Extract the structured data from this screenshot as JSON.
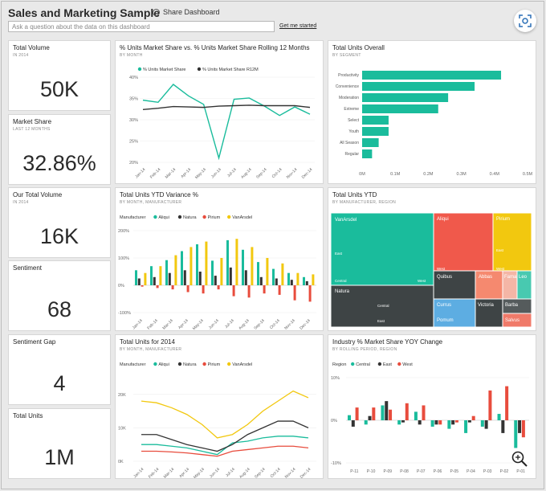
{
  "header": {
    "title": "Sales and Marketing Sample",
    "share_label": "Share Dashboard",
    "qna_placeholder": "Ask a question about the data on this dashboard",
    "get_started": "Get me started"
  },
  "kpis": [
    {
      "title": "Total Volume",
      "subtitle": "IN 2014",
      "value": "50K"
    },
    {
      "title": "Market Share",
      "subtitle": "LAST 12 MONTHS",
      "value": "32.86%"
    },
    {
      "title": "Our Total Volume",
      "subtitle": "IN 2014",
      "value": "16K"
    },
    {
      "title": "Sentiment",
      "subtitle": "",
      "value": "68"
    },
    {
      "title": "Sentiment Gap",
      "subtitle": "",
      "value": "4"
    },
    {
      "title": "Total Units",
      "subtitle": "",
      "value": "1M"
    }
  ],
  "colors": {
    "teal": "#1abc9c",
    "dark": "#333333",
    "red": "#e84c3d",
    "yellow": "#f2c80f"
  },
  "charts": {
    "share_line": {
      "title": "% Units Market Share vs. % Units Market Share Rolling 12 Months",
      "subtitle": "BY MONTH",
      "chart_data": {
        "type": "line",
        "title": "% Units Market Share vs. % Units Market Share Rolling 12 Months",
        "categories": [
          "Jan-14",
          "Feb-14",
          "Mar-14",
          "Apr-14",
          "May-14",
          "Jun-14",
          "Jul-14",
          "Aug-14",
          "Sep-14",
          "Oct-14",
          "Nov-14",
          "Dec-14"
        ],
        "series": [
          {
            "name": "% Units Market Share",
            "values": [
              34.6,
              34.1,
              38.3,
              35.6,
              33.6,
              21.0,
              34.8,
              35.1,
              33.2,
              31.0,
              33.0,
              31.3
            ]
          },
          {
            "name": "% Units Market Share R12M",
            "values": [
              32.4,
              32.7,
              33.1,
              33.0,
              32.9,
              33.2,
              33.3,
              33.4,
              33.3,
              33.3,
              33.3,
              32.9
            ]
          }
        ],
        "yticks": [
          "20%",
          "25%",
          "30%",
          "35%",
          "40%"
        ],
        "ylim": [
          20,
          40
        ]
      }
    },
    "units_overall": {
      "title": "Total Units Overall",
      "subtitle": "BY SEGMENT",
      "chart_data": {
        "type": "bar",
        "orientation": "horizontal",
        "categories": [
          "Productivity",
          "Convenience",
          "Moderation",
          "Extreme",
          "Select",
          "Youth",
          "All Season",
          "Regular"
        ],
        "values": [
          0.42,
          0.34,
          0.26,
          0.23,
          0.08,
          0.08,
          0.05,
          0.03
        ],
        "xticks": [
          "0M",
          "0.1M",
          "0.2M",
          "0.3M",
          "0.4M",
          "0.5M"
        ],
        "xlim": [
          0,
          0.5
        ]
      }
    },
    "ytd_variance": {
      "title": "Total Units YTD Variance %",
      "subtitle": "BY MONTH, MANUFACTURER",
      "legend_title": "Manufacturer",
      "chart_data": {
        "type": "bar",
        "categories": [
          "Jan-14",
          "Feb-14",
          "Mar-14",
          "Apr-14",
          "May-14",
          "Jun-14",
          "Jul-14",
          "Aug-14",
          "Sep-14",
          "Oct-14",
          "Nov-14",
          "Dec-14"
        ],
        "series": [
          {
            "name": "Aliqui",
            "values": [
              55,
              70,
              92,
              125,
              150,
              90,
              165,
              130,
              85,
              60,
              45,
              30
            ]
          },
          {
            "name": "Natura",
            "values": [
              25,
              30,
              45,
              55,
              50,
              35,
              65,
              55,
              30,
              25,
              20,
              15
            ]
          },
          {
            "name": "Pirium",
            "values": [
              -5,
              -10,
              -15,
              -25,
              -30,
              -15,
              -40,
              -45,
              -30,
              -35,
              -55,
              -60
            ]
          },
          {
            "name": "VanArsdel",
            "values": [
              45,
              70,
              110,
              140,
              160,
              100,
              170,
              140,
              100,
              80,
              45,
              40
            ]
          }
        ],
        "yticks": [
          "200%",
          "100%",
          "0%",
          "-100%"
        ],
        "ylim": [
          -100,
          200
        ]
      }
    },
    "units_ytd": {
      "title": "Total Units YTD",
      "subtitle": "BY MANUFACTURER, REGION",
      "chart_data": {
        "type": "treemap",
        "labels": [
          "VanArsdel",
          "East",
          "Central",
          "West",
          "Natura",
          "Central",
          "East",
          "Aliqui",
          "West",
          "East",
          "Pirium",
          "East",
          "West",
          "Quibus",
          "Abbas",
          "Fama",
          "Leo",
          "Victoria",
          "Barba",
          "Currus",
          "Pomum",
          "Salvus"
        ]
      }
    },
    "units_2014": {
      "title": "Total Units for 2014",
      "subtitle": "BY MONTH, MANUFACTURER",
      "legend_title": "Manufacturer",
      "chart_data": {
        "type": "line",
        "categories": [
          "Jan-14",
          "Feb-14",
          "Mar-14",
          "Apr-14",
          "May-14",
          "Jun-14",
          "Jul-14",
          "Aug-14",
          "Sep-14",
          "Oct-14",
          "Nov-14",
          "Dec-14"
        ],
        "series": [
          {
            "name": "Aliqui",
            "values": [
              5,
              5,
              4.5,
              4,
              3,
              2,
              5.5,
              6,
              7,
              7.5,
              7.5,
              7
            ]
          },
          {
            "name": "Natura",
            "values": [
              8,
              8,
              6.5,
              5,
              4,
              3,
              5,
              8,
              10,
              12,
              12,
              10
            ]
          },
          {
            "name": "Pirium",
            "values": [
              3,
              3,
              2.8,
              2.5,
              2,
              1.5,
              3,
              3.5,
              4,
              4.5,
              4.5,
              4
            ]
          },
          {
            "name": "VanArsdel",
            "values": [
              18,
              17.5,
              16,
              14,
              11,
              7,
              8,
              11,
              15,
              18,
              21,
              19
            ]
          }
        ],
        "yticks": [
          "20K",
          "10K",
          "0K"
        ],
        "ylim": [
          0,
          25
        ]
      }
    },
    "industry_share": {
      "title": "Industry % Market Share YOY Change",
      "subtitle": "BY ROLLING PERIOD, REGION",
      "legend_title": "Region",
      "chart_data": {
        "type": "bar",
        "categories": [
          "P-11",
          "P-10",
          "P-09",
          "P-08",
          "P-07",
          "P-06",
          "P-05",
          "P-04",
          "P-03",
          "P-02",
          "P-01"
        ],
        "series": [
          {
            "name": "Central",
            "values": [
              1.2,
              -1.0,
              3.5,
              -1.0,
              2.0,
              -1.5,
              -2.0,
              -3.0,
              -1.5,
              1.5,
              -6.5
            ]
          },
          {
            "name": "East",
            "values": [
              -1.5,
              1.0,
              4.5,
              -0.5,
              -1.0,
              -1.0,
              -1.0,
              -0.5,
              -2.0,
              -3.0,
              -3.0
            ]
          },
          {
            "name": "West",
            "values": [
              3.0,
              3.0,
              2.5,
              4.0,
              3.5,
              -1.0,
              -0.5,
              1.0,
              7.0,
              8.0,
              -4.0
            ]
          }
        ],
        "yticks": [
          "10%",
          "0%",
          "-10%"
        ],
        "ylim": [
          -10,
          10
        ]
      }
    }
  }
}
